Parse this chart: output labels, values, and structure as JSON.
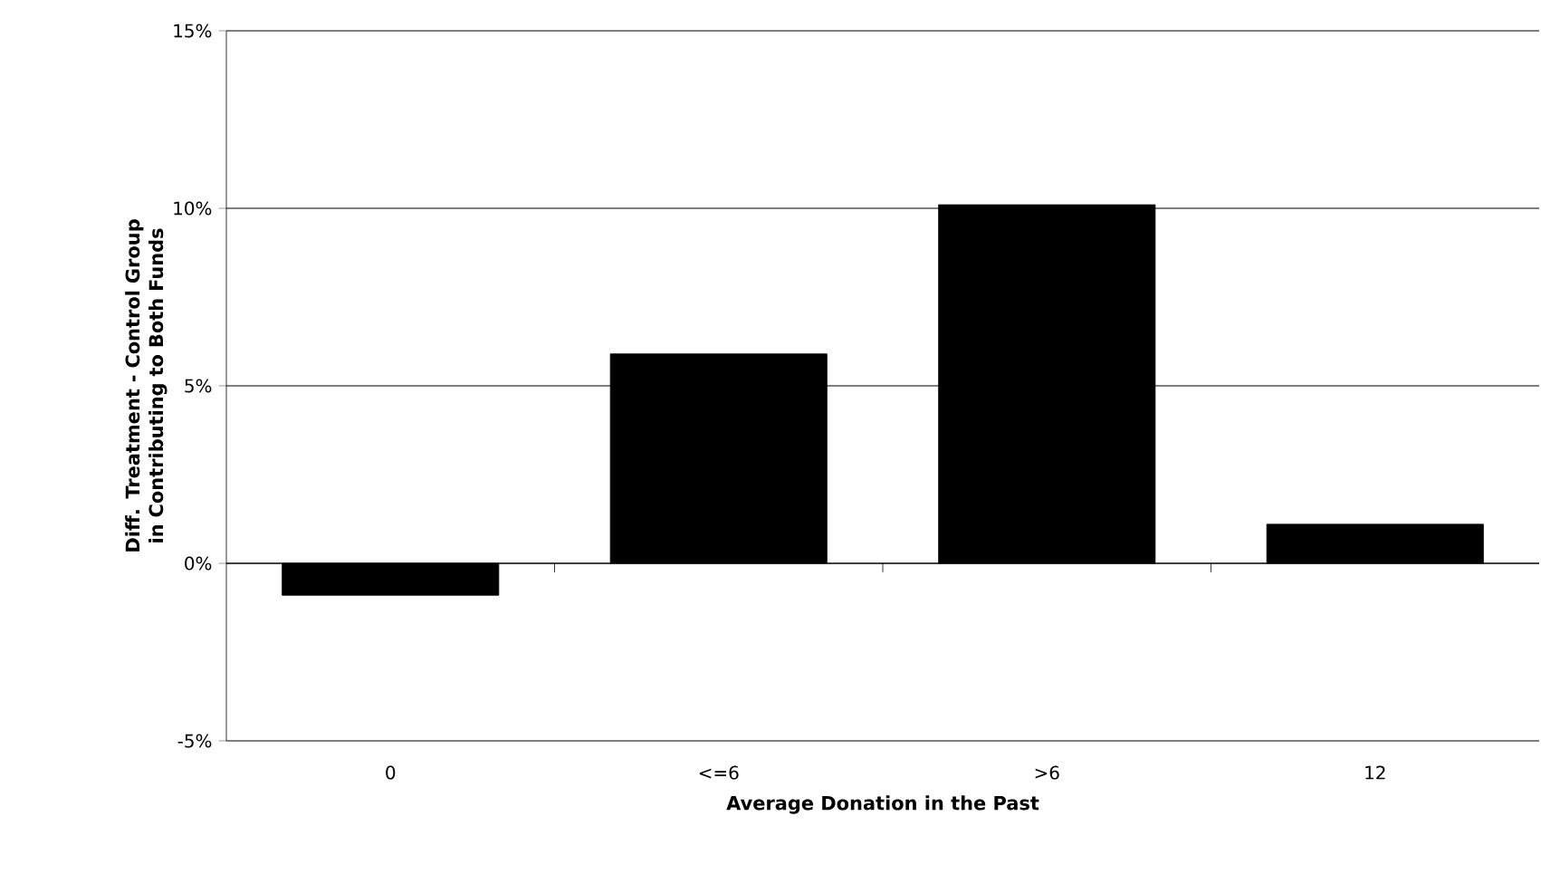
{
  "chart_data": {
    "type": "bar",
    "categories": [
      "0",
      "<=6",
      ">6",
      "12"
    ],
    "values": [
      -0.9,
      5.9,
      10.1,
      1.1
    ],
    "color": "#000000",
    "xlabel": "Average Donation in the Past",
    "ylabel": "Diff. Treatment - Control Group in Contributing to Both Funds",
    "ylim": [
      -5,
      15
    ],
    "yticks": [
      {
        "value": -5,
        "label": "-5%"
      },
      {
        "value": 0,
        "label": "0%"
      },
      {
        "value": 5,
        "label": "5%"
      },
      {
        "value": 10,
        "label": "10%"
      },
      {
        "value": 15,
        "label": "15%"
      }
    ],
    "grid": "y"
  }
}
